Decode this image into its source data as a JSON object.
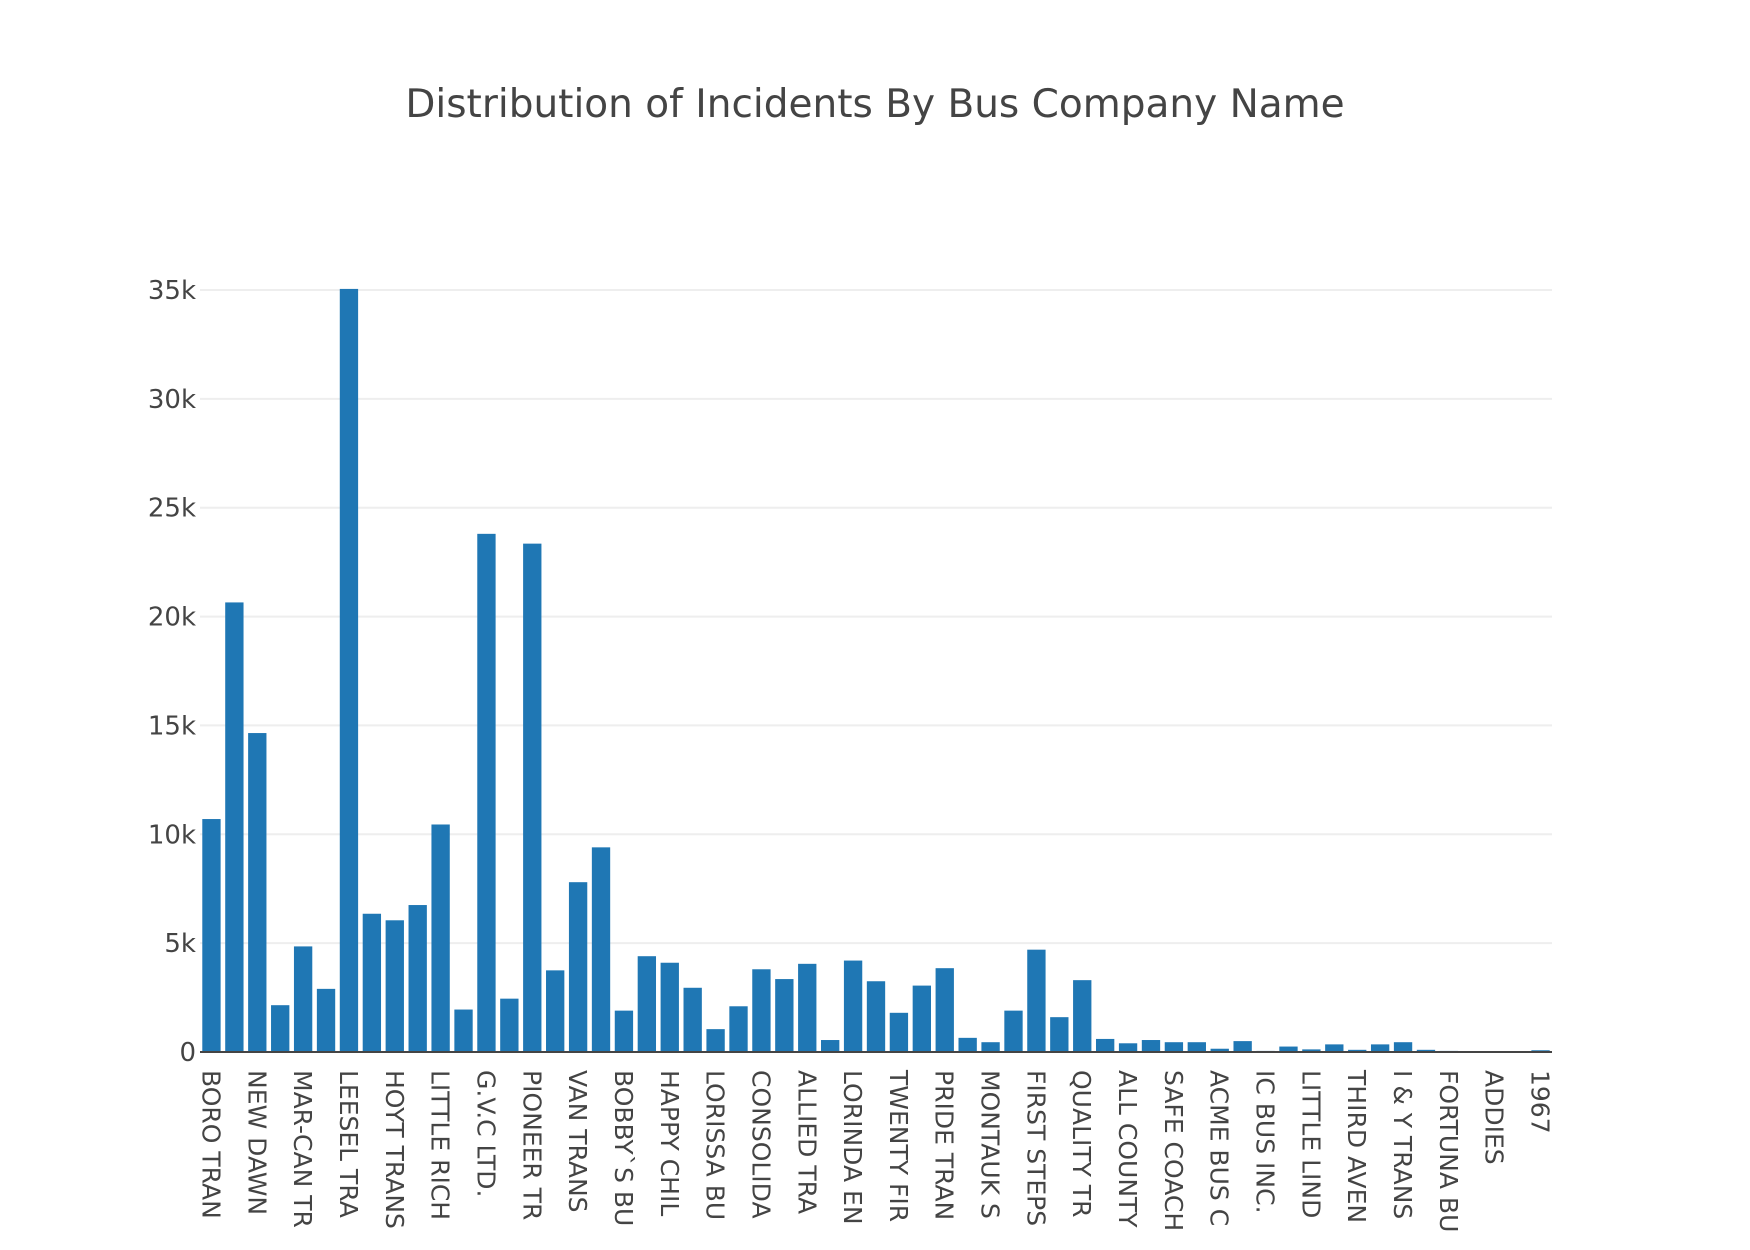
{
  "chart_data": {
    "type": "bar",
    "title": "Distribution of Incidents By Bus Company Name",
    "xlabel": "",
    "ylabel": "",
    "ylim": [
      0,
      35000
    ],
    "grid": true,
    "bar_color": "#1f77b4",
    "y_ticks": [
      {
        "value": 0,
        "label": "0"
      },
      {
        "value": 5000,
        "label": "5k"
      },
      {
        "value": 10000,
        "label": "10k"
      },
      {
        "value": 15000,
        "label": "15k"
      },
      {
        "value": 20000,
        "label": "20k"
      },
      {
        "value": 25000,
        "label": "25k"
      },
      {
        "value": 30000,
        "label": "30k"
      },
      {
        "value": 35000,
        "label": "35k"
      }
    ],
    "tick_labels": [
      "BORO TRAN",
      "NEW DAWN",
      "MAR-CAN TR",
      "LEESEL TRA",
      "HOYT TRANS",
      "LITTLE RICH",
      "G.V.C LTD.",
      "PIONEER TR",
      "VAN TRANS",
      "BOBBY`S BU",
      "HAPPY CHIL",
      "LORISSA BU",
      "CONSOLIDA",
      "ALLIED TRA",
      "LORINDA EN",
      "TWENTY FIR",
      "PRIDE TRAN",
      "MONTAUK S",
      "FIRST STEPS",
      "QUALITY TR",
      "ALL COUNTY",
      "SAFE COACH",
      "ACME BUS C",
      "IC BUS INC.",
      "LITTLE LIND",
      "THIRD AVEN",
      "I & Y TRANS",
      "FORTUNA BU",
      "ADDIES",
      "1967"
    ],
    "values": [
      10700,
      20650,
      14650,
      2150,
      4850,
      2900,
      35050,
      6350,
      6050,
      6750,
      10450,
      1950,
      23800,
      2450,
      23350,
      3750,
      7800,
      9400,
      1900,
      4400,
      4100,
      2950,
      1050,
      2100,
      3800,
      3350,
      4050,
      550,
      4200,
      3250,
      1800,
      3050,
      3850,
      650,
      450,
      1900,
      4700,
      1600,
      3300,
      600,
      400,
      550,
      450,
      450,
      150,
      500,
      50,
      250,
      120,
      350,
      100,
      350,
      450,
      100,
      50,
      30,
      20,
      20,
      80
    ]
  }
}
